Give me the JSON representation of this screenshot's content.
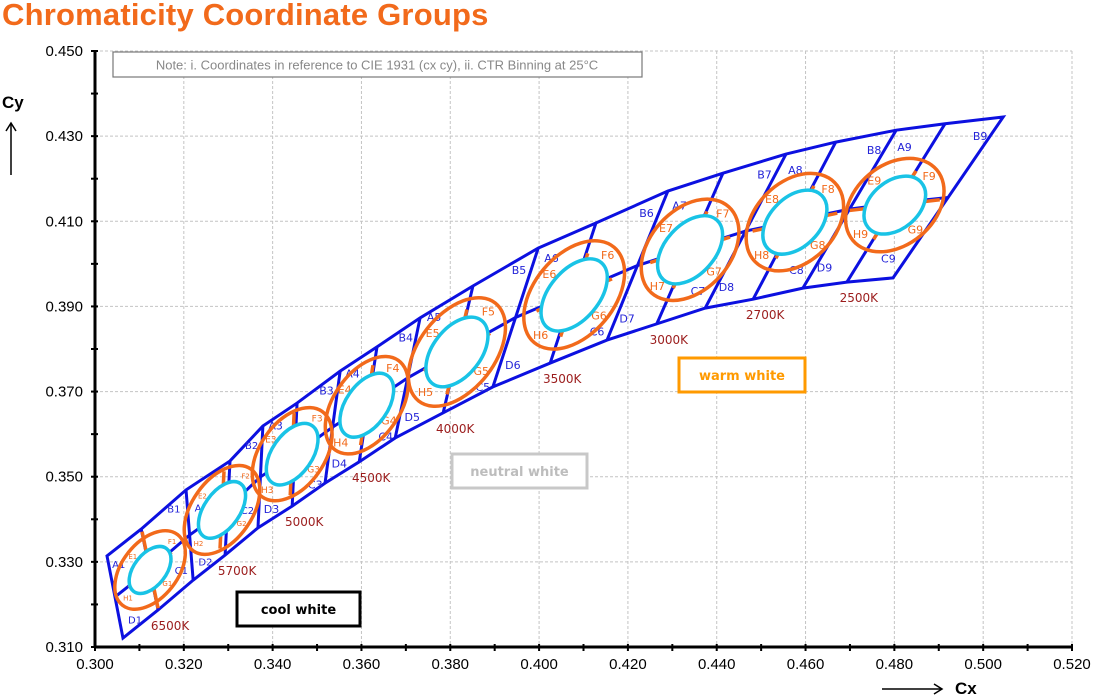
{
  "title": "Chromaticity Coordinate Groups",
  "note": "Note: i. Coordinates in reference to CIE 1931 (cx cy), ii. CTR Binning at 25°C",
  "legend": {
    "cool": "cool white",
    "neutral": "neutral white",
    "warm": "warm white"
  },
  "colors": {
    "title": "#f26a1b",
    "bin_outline": "#0c10e0",
    "outer_ellipse": "#f26a1b",
    "inner_ellipse": "#19c3e6",
    "cct_label": "#9b1c1c",
    "cool_box": "#000000",
    "neutral_box": "#c8c8c8",
    "warm_box": "#ff9a00"
  },
  "chart_data": {
    "type": "diagram-scatter",
    "xlabel": "Cx",
    "ylabel": "Cy",
    "xlim": [
      0.3,
      0.52
    ],
    "ylim": [
      0.31,
      0.45
    ],
    "x_ticks": [
      "0.300",
      "0.320",
      "0.340",
      "0.360",
      "0.380",
      "0.400",
      "0.420",
      "0.440",
      "0.460",
      "0.480",
      "0.500",
      "0.520"
    ],
    "y_ticks": [
      "0.310",
      "0.330",
      "0.350",
      "0.370",
      "0.390",
      "0.410",
      "0.430",
      "0.450"
    ],
    "minor_tick_step": 0.01,
    "grid": true,
    "boundary_top": [
      [
        0.3027,
        0.3314
      ],
      [
        0.3104,
        0.3377
      ],
      [
        0.3205,
        0.3469
      ],
      [
        0.3304,
        0.3537
      ],
      [
        0.3378,
        0.3619
      ],
      [
        0.3455,
        0.3673
      ],
      [
        0.3552,
        0.3748
      ],
      [
        0.3635,
        0.3805
      ],
      [
        0.3732,
        0.3873
      ],
      [
        0.3851,
        0.3948
      ],
      [
        0.3998,
        0.4037
      ],
      [
        0.4128,
        0.4096
      ],
      [
        0.429,
        0.4171
      ],
      [
        0.4414,
        0.4213
      ],
      [
        0.4556,
        0.4258
      ],
      [
        0.4668,
        0.4286
      ],
      [
        0.4804,
        0.4314
      ],
      [
        0.4914,
        0.4329
      ],
      [
        0.5045,
        0.4345
      ]
    ],
    "boundary_bottom": [
      [
        0.3063,
        0.3121
      ],
      [
        0.3142,
        0.3187
      ],
      [
        0.3221,
        0.3257
      ],
      [
        0.3293,
        0.3316
      ],
      [
        0.3367,
        0.338
      ],
      [
        0.3444,
        0.3431
      ],
      [
        0.3518,
        0.3485
      ],
      [
        0.3595,
        0.3535
      ],
      [
        0.3676,
        0.3591
      ],
      [
        0.3784,
        0.365
      ],
      [
        0.3896,
        0.3711
      ],
      [
        0.4025,
        0.3767
      ],
      [
        0.4153,
        0.3821
      ],
      [
        0.4265,
        0.3859
      ],
      [
        0.4374,
        0.3896
      ],
      [
        0.4482,
        0.3917
      ],
      [
        0.4594,
        0.3943
      ],
      [
        0.4693,
        0.3957
      ],
      [
        0.4797,
        0.3967
      ]
    ],
    "bins": [
      {
        "cct": "6500K",
        "quadrants": [
          "A1",
          "B1",
          "C1",
          "D1"
        ],
        "ellipse": "31",
        "sub": [
          "E1",
          "F1",
          "G1",
          "H1"
        ],
        "center": [
          0.3124,
          0.3281
        ],
        "inner": [
          0.0062,
          0.0037
        ],
        "outer": [
          0.0103,
          0.0064
        ],
        "tilt": 52
      },
      {
        "cct": "5700K",
        "quadrants": [
          "A2",
          "B2",
          "C2",
          "D2"
        ],
        "ellipse": "32",
        "sub": [
          "E2",
          "F2",
          "G2",
          "H2"
        ],
        "center": [
          0.3286,
          0.3422
        ],
        "inner": [
          0.0074,
          0.0041
        ],
        "outer": [
          0.0115,
          0.0069
        ],
        "tilt": 55
      },
      {
        "cct": "5000K",
        "quadrants": [
          "A3",
          "B3",
          "C3",
          "D3"
        ],
        "ellipse": "33",
        "sub": [
          "E3",
          "F3",
          "G3",
          "H3"
        ],
        "center": [
          0.3444,
          0.3553
        ],
        "inner": [
          0.008,
          0.0046
        ],
        "outer": [
          0.012,
          0.0074
        ],
        "tilt": 55
      },
      {
        "cct": "4500K",
        "quadrants": [
          "A4",
          "B4",
          "C4",
          "D4"
        ],
        "ellipse": "34",
        "sub": [
          "E4",
          "F4",
          "G4",
          "H4"
        ],
        "center": [
          0.3612,
          0.3668
        ],
        "inner": [
          0.0083,
          0.0048
        ],
        "outer": [
          0.0126,
          0.0076
        ],
        "tilt": 55
      },
      {
        "cct": "4000K",
        "quadrants": [
          "A5",
          "B5",
          "C5",
          "D5"
        ],
        "ellipse": "35",
        "sub": [
          "E5",
          "F5",
          "G5",
          "H5"
        ],
        "center": [
          0.3815,
          0.3793
        ],
        "inner": [
          0.0092,
          0.0055
        ],
        "outer": [
          0.0143,
          0.0087
        ],
        "tilt": 52
      },
      {
        "cct": "3500K",
        "quadrants": [
          "A6",
          "B6",
          "C6",
          "D6"
        ],
        "ellipse": "36",
        "sub": [
          "E6",
          "F6",
          "G6",
          "H6"
        ],
        "center": [
          0.4079,
          0.3927
        ],
        "inner": [
          0.0097,
          0.0057
        ],
        "outer": [
          0.0143,
          0.0092
        ],
        "tilt": 50
      },
      {
        "cct": "3000K",
        "quadrants": [
          "A7",
          "B7",
          "C7",
          "D7"
        ],
        "ellipse": "37",
        "sub": [
          "E7",
          "F7",
          "G7",
          "H7"
        ],
        "center": [
          0.434,
          0.4033
        ],
        "inner": [
          0.0092,
          0.0057
        ],
        "outer": [
          0.0133,
          0.0092
        ],
        "tilt": 48
      },
      {
        "cct": "2700K",
        "quadrants": [
          "A8",
          "B8",
          "C8",
          "D8"
        ],
        "ellipse": "38",
        "sub": [
          "E8",
          "F8",
          "G8",
          "H8"
        ],
        "center": [
          0.4576,
          0.4098
        ],
        "inner": [
          0.0087,
          0.0057
        ],
        "outer": [
          0.0129,
          0.0092
        ],
        "tilt": 45
      },
      {
        "cct": "2500K",
        "quadrants": [
          "A9",
          "B9",
          "C9",
          "D9"
        ],
        "ellipse": "39",
        "sub": [
          "E9",
          "F9",
          "G9",
          "H9"
        ],
        "center": [
          0.4801,
          0.4138
        ],
        "inner": [
          0.008,
          0.0055
        ],
        "outer": [
          0.0126,
          0.0092
        ],
        "tilt": 40
      }
    ]
  }
}
